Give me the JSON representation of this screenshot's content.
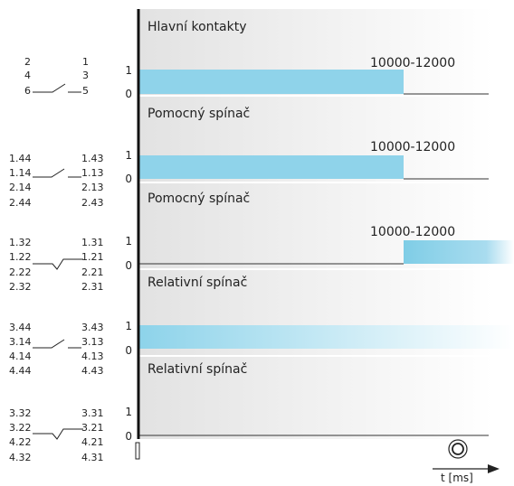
{
  "panels": [
    {
      "title": "Hlavní kontakty",
      "range_label": "10000-12000",
      "level_high": "1",
      "level_low": "0",
      "contacts_left": [
        "2",
        "4",
        "6"
      ],
      "contacts_right": [
        "1",
        "3",
        "5"
      ],
      "state": "closed-then-open"
    },
    {
      "title": "Pomocný spínač",
      "range_label": "10000-12000",
      "level_high": "1",
      "level_low": "0",
      "contacts_left": [
        "1.44",
        "1.14",
        "2.14",
        "2.44"
      ],
      "contacts_right": [
        "1.43",
        "1.13",
        "2.13",
        "2.43"
      ],
      "state": "closed-then-open"
    },
    {
      "title": "Pomocný spínač",
      "range_label": "10000-12000",
      "level_high": "1",
      "level_low": "0",
      "contacts_left": [
        "1.32",
        "1.22",
        "2.22",
        "2.32"
      ],
      "contacts_right": [
        "1.31",
        "1.21",
        "2.21",
        "2.31"
      ],
      "state": "open-then-closed"
    },
    {
      "title": "Relativní spínač",
      "range_label": "",
      "level_high": "1",
      "level_low": "0",
      "contacts_left": [
        "3.44",
        "3.14",
        "4.14",
        "4.44"
      ],
      "contacts_right": [
        "3.43",
        "3.13",
        "4.13",
        "4.43"
      ],
      "state": "always-closed"
    },
    {
      "title": "Relativní spínač",
      "range_label": "",
      "level_high": "1",
      "level_low": "0",
      "contacts_left": [
        "3.32",
        "3.22",
        "4.22",
        "4.32"
      ],
      "contacts_right": [
        "3.31",
        "3.21",
        "4.21",
        "4.31"
      ],
      "state": "always-open"
    }
  ],
  "time_axis_label": "t [ms]",
  "colors": {
    "signal": "#8fd3ea",
    "line": "#111111",
    "panel_bg": "#eeeeee"
  }
}
